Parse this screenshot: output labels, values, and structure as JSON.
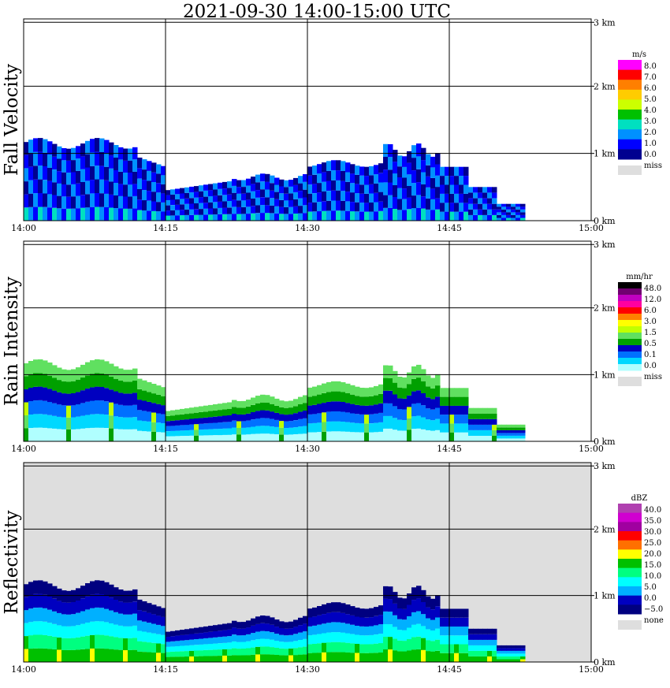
{
  "title": "2021-09-30   14:00-15:00 UTC",
  "chart_data": [
    {
      "type": "heatmap",
      "panel": "fall-velocity",
      "ylabel": "Fall Velocity",
      "x_ticks": [
        "14:00",
        "14:15",
        "14:30",
        "14:45",
        "15:00"
      ],
      "y_ticks": [
        "0 km",
        "1 km",
        "2 km",
        "3 km"
      ],
      "ylim": [
        0,
        3.0
      ],
      "xlim_minutes": [
        0,
        60
      ],
      "legend_unit": "m/s",
      "legend_labels": [
        "8.0",
        "7.0",
        "6.0",
        "5.0",
        "4.0",
        "3.0",
        "2.0",
        "1.0",
        "0.0"
      ],
      "legend_colors": [
        "#ff00ff",
        "#ff0000",
        "#ff7f00",
        "#ffcc00",
        "#ccff00",
        "#00c000",
        "#00e0c0",
        "#0090ff",
        "#0000ff",
        "#000090"
      ],
      "legend_missing_label": "miss",
      "legend_missing_color": "#dedede",
      "background": "#ffffff"
    },
    {
      "type": "heatmap",
      "panel": "rain-intensity",
      "ylabel": "Rain Intensity",
      "x_ticks": [
        "14:00",
        "14:15",
        "14:30",
        "14:45",
        "15:00"
      ],
      "y_ticks": [
        "0 km",
        "1 km",
        "2 km",
        "3 km"
      ],
      "ylim": [
        0,
        3.0
      ],
      "xlim_minutes": [
        0,
        60
      ],
      "legend_unit": "mm/hr",
      "legend_labels": [
        "48.0",
        "12.0",
        "6.0",
        "3.0",
        "1.5",
        "0.5",
        "0.1",
        "0.0"
      ],
      "legend_colors": [
        "#000000",
        "#700070",
        "#c000c0",
        "#ff00a0",
        "#ff0000",
        "#ff8000",
        "#ffff00",
        "#c0ff00",
        "#60e060",
        "#00a000",
        "#0000c0",
        "#0070ff",
        "#00d8ff",
        "#b0ffff"
      ],
      "legend_missing_label": "miss",
      "legend_missing_color": "#dedede",
      "background": "#ffffff"
    },
    {
      "type": "heatmap",
      "panel": "reflectivity",
      "ylabel": "Reflectivity",
      "x_ticks": [
        "14:00",
        "14:15",
        "14:30",
        "14:45",
        "15:00"
      ],
      "y_ticks": [
        "0 km",
        "1 km",
        "2 km",
        "3 km"
      ],
      "ylim": [
        0,
        3.0
      ],
      "xlim_minutes": [
        0,
        60
      ],
      "legend_unit": "dBZ",
      "legend_labels": [
        "40.0",
        "35.0",
        "30.0",
        "25.0",
        "20.0",
        "15.0",
        "10.0",
        "5.0",
        "0.0",
        "−5.0"
      ],
      "legend_colors": [
        "#b040b0",
        "#d000d0",
        "#a000a0",
        "#ff0000",
        "#ff7000",
        "#ffff00",
        "#00c000",
        "#00ff80",
        "#00ffff",
        "#00b0ff",
        "#0000c0",
        "#000080"
      ],
      "legend_missing_label": "none",
      "legend_missing_color": "#dedede",
      "background": "#dedede"
    }
  ]
}
